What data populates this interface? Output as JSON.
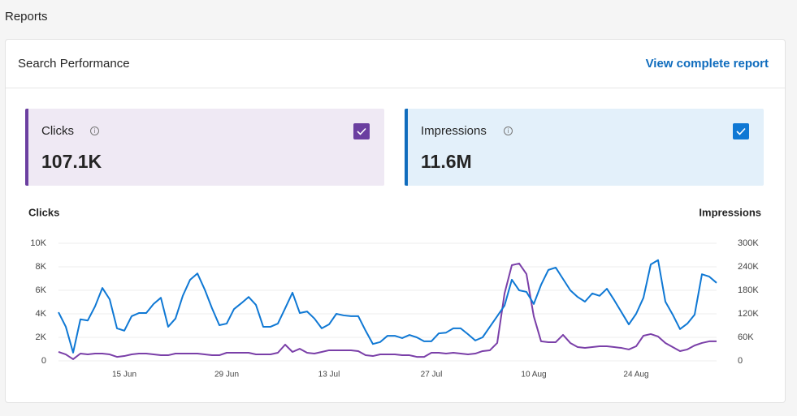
{
  "page": {
    "title": "Reports"
  },
  "card": {
    "title": "Search Performance",
    "link": "View complete report"
  },
  "metrics": [
    {
      "label": "Clicks",
      "value": "107.1K"
    },
    {
      "label": "Impressions",
      "value": "11.6M"
    }
  ],
  "chart_data": {
    "type": "line",
    "y_label": "Clicks",
    "y2_label": "Impressions",
    "categories": [
      null,
      null,
      null,
      null,
      null,
      null,
      null,
      null,
      null,
      "15 Jun",
      null,
      null,
      null,
      null,
      null,
      null,
      null,
      null,
      null,
      null,
      null,
      null,
      null,
      "29 Jun",
      null,
      null,
      null,
      null,
      null,
      null,
      null,
      null,
      null,
      null,
      null,
      null,
      null,
      "13 Jul",
      null,
      null,
      null,
      null,
      null,
      null,
      null,
      null,
      null,
      null,
      null,
      null,
      null,
      "27 Jul",
      null,
      null,
      null,
      null,
      null,
      null,
      null,
      null,
      null,
      null,
      null,
      null,
      null,
      "10 Aug",
      null,
      null,
      null,
      null,
      null,
      null,
      null,
      null,
      null,
      null,
      null,
      null,
      null,
      "24 Aug",
      null,
      null,
      null,
      null,
      null,
      null,
      null,
      null,
      null,
      null,
      null
    ],
    "series": [
      {
        "name": "Clicks",
        "color": "#7a3fa8",
        "axis": "y",
        "values": [
          760,
          550,
          140,
          620,
          550,
          620,
          620,
          550,
          340,
          410,
          550,
          620,
          620,
          550,
          480,
          480,
          620,
          620,
          620,
          620,
          550,
          480,
          480,
          690,
          690,
          690,
          690,
          550,
          550,
          550,
          690,
          1380,
          760,
          1030,
          690,
          620,
          760,
          900,
          900,
          900,
          900,
          830,
          480,
          410,
          550,
          550,
          550,
          480,
          480,
          340,
          340,
          690,
          690,
          620,
          690,
          620,
          550,
          620,
          830,
          900,
          1520,
          5720,
          8140,
          8280,
          7380,
          3790,
          1660,
          1590,
          1590,
          2210,
          1520,
          1170,
          1100,
          1170,
          1240,
          1240,
          1170,
          1100,
          970,
          1240,
          2140,
          2280,
          2070,
          1520,
          1170,
          830,
          970,
          1310,
          1520,
          1660,
          1660
        ]
      },
      {
        "name": "Impressions",
        "color": "#0f78d4",
        "axis": "y2",
        "values": [
          124000,
          87000,
          21000,
          106000,
          103000,
          139000,
          186000,
          157000,
          83000,
          77000,
          114000,
          122000,
          122000,
          145000,
          161000,
          87000,
          108000,
          166000,
          207000,
          223000,
          182000,
          134000,
          91000,
          95000,
          132000,
          147000,
          163000,
          143000,
          87000,
          87000,
          95000,
          134000,
          174000,
          122000,
          126000,
          108000,
          83000,
          93000,
          120000,
          116000,
          114000,
          114000,
          77000,
          43000,
          48000,
          64000,
          64000,
          58000,
          66000,
          60000,
          50000,
          50000,
          70000,
          72000,
          83000,
          83000,
          68000,
          52000,
          60000,
          87000,
          114000,
          141000,
          207000,
          180000,
          176000,
          145000,
          194000,
          232000,
          238000,
          209000,
          180000,
          163000,
          151000,
          172000,
          166000,
          184000,
          155000,
          124000,
          93000,
          120000,
          161000,
          246000,
          257000,
          151000,
          118000,
          81000,
          95000,
          118000,
          221000,
          215000,
          199000
        ]
      }
    ],
    "ylim": [
      0,
      10000
    ],
    "yticks": [
      0,
      {
        "value": 2000,
        "label": "2K"
      },
      {
        "value": 4000,
        "label": "4K"
      },
      {
        "value": 6000,
        "label": "6K"
      },
      {
        "value": 8000,
        "label": "8K"
      },
      {
        "value": 10000,
        "label": "10K"
      }
    ],
    "y2lim": [
      0,
      300000
    ],
    "y2ticks": [
      0,
      {
        "value": 60000,
        "label": "60K"
      },
      {
        "value": 120000,
        "label": "120K"
      },
      {
        "value": 180000,
        "label": "180K"
      },
      {
        "value": 240000,
        "label": "240K"
      },
      {
        "value": 300000,
        "label": "300K"
      }
    ],
    "grid": true
  }
}
